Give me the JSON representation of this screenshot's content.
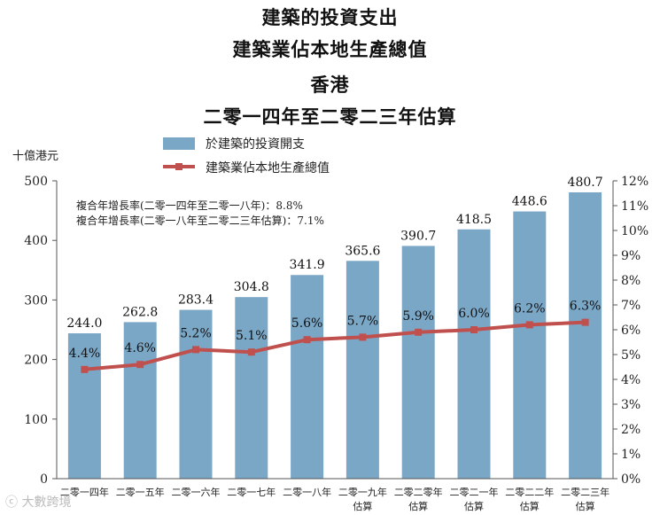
{
  "titles": [
    "建築的投資支出",
    "建築業佔本地生產總值",
    "香港",
    "二零一四年至二零二三年估算"
  ],
  "watermark": "ⓒ 大數跨境",
  "chart_data": {
    "type": "bar+line",
    "unit_label": "十億港元",
    "categories": [
      [
        "二零一四年"
      ],
      [
        "二零一五年"
      ],
      [
        "二零一六年"
      ],
      [
        "二零一七年"
      ],
      [
        "二零一八年"
      ],
      [
        "二零一九年",
        "估算"
      ],
      [
        "二零二零年",
        "估算"
      ],
      [
        "二零二一年",
        "估算"
      ],
      [
        "二零二二年",
        "估算"
      ],
      [
        "二零二三年",
        "估算"
      ]
    ],
    "bar_series": {
      "name": "於建築的投資開支",
      "values": [
        244.0,
        262.8,
        283.4,
        304.8,
        341.9,
        365.6,
        390.7,
        418.5,
        448.6,
        480.7
      ],
      "labels": [
        "244.0",
        "262.8",
        "283.4",
        "304.8",
        "341.9",
        "365.6",
        "390.7",
        "418.5",
        "448.6",
        "480.7"
      ],
      "color": "#7BA7C7"
    },
    "line_series": {
      "name": "建築業佔本地生產總值",
      "values": [
        4.4,
        4.6,
        5.2,
        5.1,
        5.6,
        5.7,
        5.9,
        6.0,
        6.2,
        6.3
      ],
      "labels": [
        "4.4%",
        "4.6%",
        "5.2%",
        "5.1%",
        "5.6%",
        "5.7%",
        "5.9%",
        "6.0%",
        "6.2%",
        "6.3%"
      ],
      "color": "#C0504D"
    },
    "y_left": {
      "min": 0,
      "max": 500,
      "ticks": [
        0,
        100,
        200,
        300,
        400,
        500
      ],
      "tick_labels": [
        "0",
        "100",
        "200",
        "300",
        "400",
        "500"
      ]
    },
    "y_right": {
      "min": 0,
      "max": 12,
      "ticks": [
        0,
        1,
        2,
        3,
        4,
        5,
        6,
        7,
        8,
        9,
        10,
        11,
        12
      ],
      "tick_labels": [
        "0%",
        "1%",
        "2%",
        "3%",
        "4%",
        "5%",
        "6%",
        "7%",
        "8%",
        "9%",
        "10%",
        "11%",
        "12%"
      ]
    },
    "annotations": [
      "複合年增長率(二零一四年至二零一八年)：8.8%",
      "複合年增長率(二零一八年至二零二三年估算)：7.1%"
    ],
    "legend_position": "top",
    "grid": false
  }
}
